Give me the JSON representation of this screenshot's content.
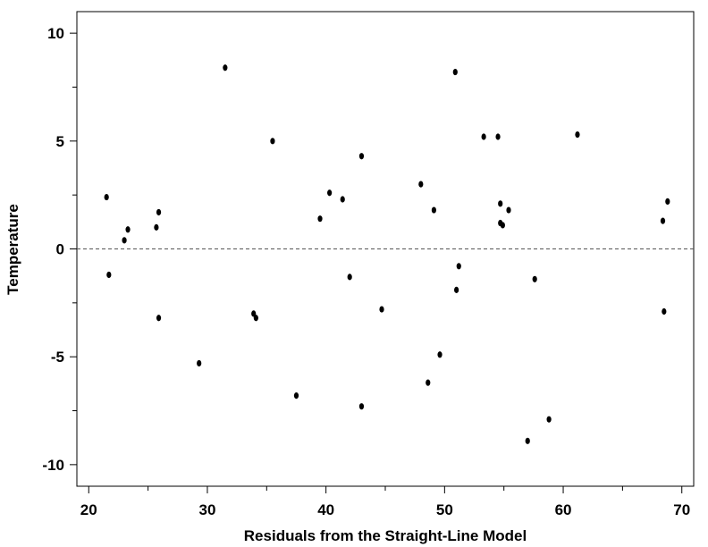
{
  "chart_data": {
    "type": "scatter",
    "title": "",
    "xlabel": "Residuals from the Straight-Line Model",
    "ylabel": "Temperature",
    "xlim": [
      19,
      71
    ],
    "ylim": [
      -11,
      11
    ],
    "xticks_major": [
      20,
      30,
      40,
      50,
      60,
      70
    ],
    "yticks_major": [
      -10,
      -5,
      0,
      5,
      10
    ],
    "xtick_labels": [
      "20",
      "30",
      "40",
      "50",
      "60",
      "70"
    ],
    "ytick_labels": [
      "-10",
      "-5",
      "0",
      "5",
      "10"
    ],
    "reference_line": {
      "y": 0,
      "style": "dashed"
    },
    "grid": false,
    "point_color": "#000000",
    "points": [
      {
        "x": 21.5,
        "y": 2.4
      },
      {
        "x": 21.7,
        "y": -1.2
      },
      {
        "x": 23.0,
        "y": 0.4
      },
      {
        "x": 23.3,
        "y": 0.9
      },
      {
        "x": 25.7,
        "y": 1.0
      },
      {
        "x": 25.9,
        "y": 1.7
      },
      {
        "x": 25.9,
        "y": -3.2
      },
      {
        "x": 29.3,
        "y": -5.3
      },
      {
        "x": 31.5,
        "y": 8.4
      },
      {
        "x": 33.9,
        "y": -3.0
      },
      {
        "x": 34.1,
        "y": -3.2
      },
      {
        "x": 35.5,
        "y": 5.0
      },
      {
        "x": 37.5,
        "y": -6.8
      },
      {
        "x": 39.5,
        "y": 1.4
      },
      {
        "x": 40.3,
        "y": 2.6
      },
      {
        "x": 41.4,
        "y": 2.3
      },
      {
        "x": 42.0,
        "y": -1.3
      },
      {
        "x": 43.0,
        "y": 4.3
      },
      {
        "x": 43.0,
        "y": -7.3
      },
      {
        "x": 44.7,
        "y": -2.8
      },
      {
        "x": 48.0,
        "y": 3.0
      },
      {
        "x": 48.6,
        "y": -6.2
      },
      {
        "x": 49.1,
        "y": 1.8
      },
      {
        "x": 49.6,
        "y": -4.9
      },
      {
        "x": 50.9,
        "y": 8.2
      },
      {
        "x": 51.0,
        "y": -1.9
      },
      {
        "x": 51.2,
        "y": -0.8
      },
      {
        "x": 53.3,
        "y": 5.2
      },
      {
        "x": 54.5,
        "y": 5.2
      },
      {
        "x": 54.7,
        "y": 2.1
      },
      {
        "x": 54.7,
        "y": 1.2
      },
      {
        "x": 54.9,
        "y": 1.1
      },
      {
        "x": 55.4,
        "y": 1.8
      },
      {
        "x": 57.0,
        "y": -8.9
      },
      {
        "x": 57.6,
        "y": -1.4
      },
      {
        "x": 58.8,
        "y": -7.9
      },
      {
        "x": 61.2,
        "y": 5.3
      },
      {
        "x": 68.4,
        "y": 1.3
      },
      {
        "x": 68.5,
        "y": -2.9
      },
      {
        "x": 68.8,
        "y": 2.2
      }
    ]
  }
}
